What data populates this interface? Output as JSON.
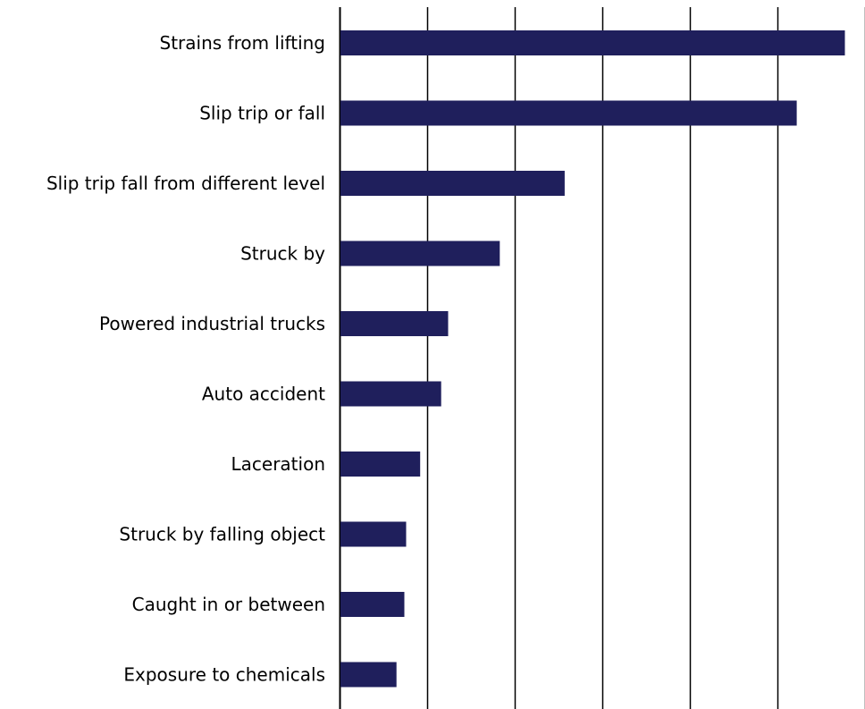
{
  "chart_data": {
    "type": "bar",
    "orientation": "horizontal",
    "title": "",
    "xlabel": "",
    "ylabel": "",
    "categories": [
      "Strains from lifting",
      "Slip trip or fall",
      "Slip trip fall from different level",
      "Struck by",
      "Powered industrial trucks",
      "Auto accident",
      "Laceration",
      "Struck by falling object",
      "Caught in or between",
      "Exposure to chemicals"
    ],
    "values": [
      5.77,
      5.22,
      2.57,
      1.83,
      1.24,
      1.16,
      0.92,
      0.76,
      0.74,
      0.65
    ],
    "xlim": [
      0,
      6
    ],
    "gridlines": [
      1,
      2,
      3,
      4,
      5,
      6
    ],
    "grid": "vertical",
    "tick_labels_shown": false,
    "legend": "none",
    "bar_color": "#1f1f5c",
    "grid_color": "#000000"
  }
}
